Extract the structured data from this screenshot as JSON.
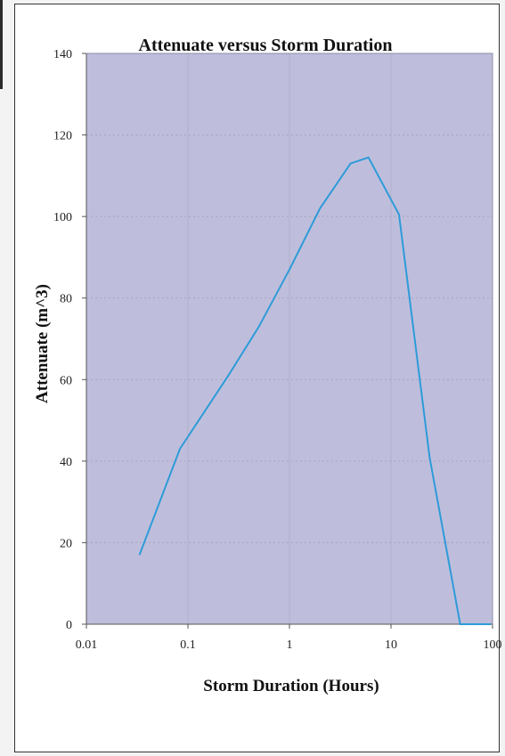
{
  "chart_data": {
    "type": "line",
    "title": "Attenuate versus Storm Duration",
    "xlabel": "Storm Duration (Hours)",
    "ylabel": "Attenuate (m^3)",
    "x_scale": "log",
    "xlim": [
      0.01,
      100
    ],
    "ylim": [
      0,
      140
    ],
    "x_ticks": [
      "0.01",
      "0.1",
      "1",
      "10",
      "100"
    ],
    "y_ticks": [
      "0",
      "20",
      "40",
      "60",
      "80",
      "100",
      "120",
      "140"
    ],
    "grid": true,
    "legend": "none",
    "plot_background": "#bebedc",
    "line_color": "#2e9bd8",
    "series": [
      {
        "x": [
          0.0333,
          0.0833,
          0.25,
          0.5,
          1,
          2,
          4,
          6,
          12,
          24,
          48,
          96
        ],
        "values": [
          17,
          43,
          61,
          73,
          87,
          102,
          113,
          114.5,
          100.5,
          41,
          0,
          0
        ]
      }
    ]
  }
}
